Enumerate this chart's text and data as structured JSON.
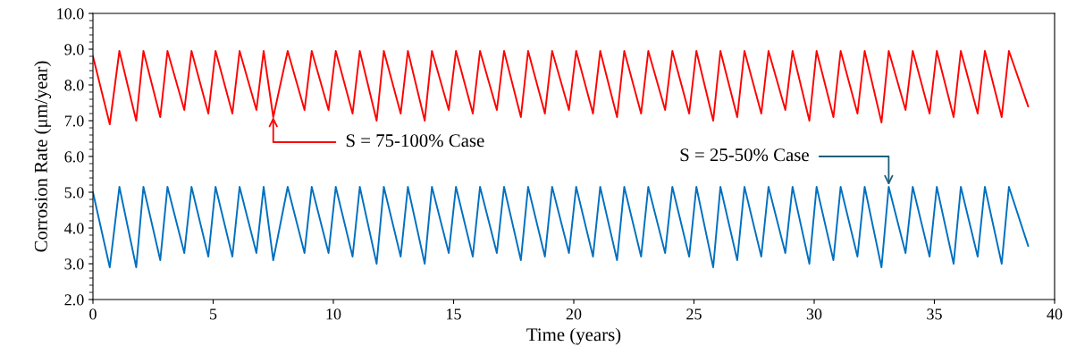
{
  "chart_data": {
    "type": "line",
    "xlabel": "Time (years)",
    "ylabel": "Corrosion Rate (μm/year)",
    "xlim": [
      0,
      40
    ],
    "xticks": [
      0,
      5,
      10,
      15,
      20,
      25,
      30,
      35,
      40
    ],
    "ylim": [
      2.0,
      10.0
    ],
    "yticks": [
      {
        "value": 2,
        "label": "2.0"
      },
      {
        "value": 3,
        "label": "3.0"
      },
      {
        "value": 4,
        "label": "4.0"
      },
      {
        "value": 5,
        "label": "5.0"
      },
      {
        "value": 6,
        "label": "6.0"
      },
      {
        "value": 7,
        "label": "7.0"
      },
      {
        "value": 8,
        "label": "8.0"
      },
      {
        "value": 9,
        "label": "9.0"
      },
      {
        "value": 10,
        "label": "10.0"
      }
    ],
    "grid": false,
    "line_style": "solid",
    "marker": "none",
    "x": [
      0,
      0.7,
      1.1,
      1.8,
      2.1,
      2.8,
      3.1,
      3.8,
      4.1,
      4.8,
      5.1,
      5.8,
      6.1,
      6.8,
      7.1,
      7.5,
      8.1,
      8.8,
      9.1,
      9.8,
      10.1,
      10.8,
      11.1,
      11.8,
      12.1,
      12.8,
      13.1,
      13.8,
      14.1,
      14.8,
      15.1,
      15.8,
      16.1,
      16.8,
      17.1,
      17.8,
      18.1,
      18.8,
      19.1,
      19.8,
      20.1,
      20.8,
      21.1,
      21.8,
      22.1,
      22.8,
      23.1,
      23.8,
      24.1,
      24.8,
      25.1,
      25.8,
      26.1,
      26.8,
      27.1,
      27.8,
      28.1,
      28.8,
      29.1,
      29.8,
      30.1,
      30.8,
      31.1,
      31.8,
      32.1,
      32.8,
      33.1,
      33.8,
      34.1,
      34.8,
      35.1,
      35.8,
      36.1,
      36.8,
      37.1,
      37.8,
      38.1,
      38.9
    ],
    "series": [
      {
        "color": "#ff0000",
        "values": [
          8.8,
          6.9,
          8.95,
          7.0,
          8.95,
          7.1,
          8.95,
          7.3,
          8.95,
          7.2,
          8.95,
          7.2,
          8.95,
          7.3,
          8.95,
          7.1,
          8.95,
          7.3,
          8.95,
          7.3,
          8.95,
          7.2,
          8.95,
          7.0,
          8.95,
          7.2,
          8.95,
          7.0,
          8.95,
          7.3,
          8.95,
          7.2,
          8.95,
          7.3,
          8.95,
          7.1,
          8.95,
          7.2,
          8.95,
          7.3,
          8.95,
          7.2,
          8.95,
          7.1,
          8.95,
          7.2,
          8.95,
          7.3,
          8.95,
          7.2,
          8.95,
          7.0,
          8.95,
          7.1,
          8.95,
          7.2,
          8.95,
          7.3,
          8.95,
          7.0,
          8.95,
          7.1,
          8.95,
          7.2,
          8.95,
          6.95,
          8.95,
          7.3,
          8.95,
          7.2,
          8.95,
          7.1,
          8.95,
          7.2,
          8.95,
          7.1,
          8.95,
          7.4
        ]
      },
      {
        "color": "#0070c0",
        "values": [
          5.0,
          2.9,
          5.15,
          2.9,
          5.15,
          3.1,
          5.15,
          3.3,
          5.15,
          3.2,
          5.15,
          3.2,
          5.15,
          3.3,
          5.15,
          3.1,
          5.15,
          3.3,
          5.15,
          3.3,
          5.15,
          3.2,
          5.15,
          3.0,
          5.15,
          3.2,
          5.15,
          3.0,
          5.15,
          3.3,
          5.15,
          3.2,
          5.15,
          3.3,
          5.15,
          3.1,
          5.15,
          3.2,
          5.15,
          3.3,
          5.15,
          3.2,
          5.15,
          3.1,
          5.15,
          3.2,
          5.15,
          3.3,
          5.15,
          3.2,
          5.15,
          2.9,
          5.15,
          3.1,
          5.15,
          3.2,
          5.15,
          3.3,
          5.15,
          3.0,
          5.15,
          3.1,
          5.15,
          3.2,
          5.15,
          2.9,
          5.15,
          3.3,
          5.15,
          3.2,
          5.15,
          3.0,
          5.15,
          3.2,
          5.15,
          3.0,
          5.15,
          3.5
        ]
      }
    ],
    "annotations": [
      {
        "text": "S = 75-100% Case",
        "x": 7.5,
        "y": 7.1
      },
      {
        "text": "S = 25-50% Case",
        "x": 33.1,
        "y": 5.2
      }
    ]
  }
}
